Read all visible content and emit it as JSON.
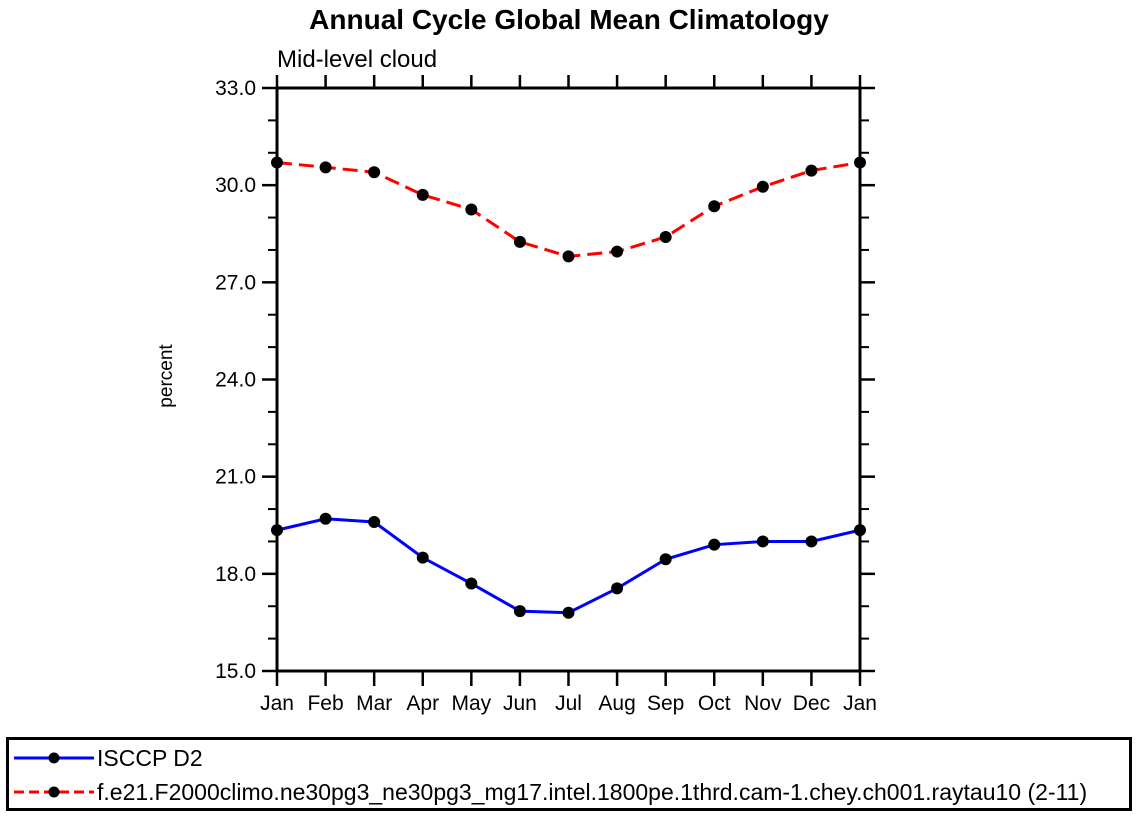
{
  "chart_data": {
    "type": "line",
    "title": "Annual Cycle Global Mean Climatology",
    "subtitle": "Mid-level cloud",
    "ylabel": "percent",
    "ylim": [
      15.0,
      33.0
    ],
    "yticks_major": [
      33.0,
      30.0,
      27.0,
      24.0,
      21.0,
      18.0,
      15.0
    ],
    "ytick_labels": [
      "33.0",
      "30.0",
      "27.0",
      "24.0",
      "21.0",
      "18.0",
      "15.0"
    ],
    "ytick_minor_step": 1.0,
    "x_categories": [
      "Jan",
      "Feb",
      "Mar",
      "Apr",
      "May",
      "Jun",
      "Jul",
      "Aug",
      "Sep",
      "Oct",
      "Nov",
      "Dec",
      "Jan"
    ],
    "grid": false,
    "legend_position": "bottom-box",
    "marker": "filled-circle",
    "marker_color": "#000000",
    "series": [
      {
        "name": "ISCCP D2",
        "line_color": "#0000ff",
        "line_style": "solid",
        "values": [
          19.35,
          19.7,
          19.6,
          18.5,
          17.7,
          16.85,
          16.8,
          17.55,
          18.45,
          18.9,
          19.0,
          19.0,
          19.35
        ]
      },
      {
        "name": "f.e21.F2000climo.ne30pg3_ne30pg3_mg17.intel.1800pe.1thrd.cam-1.chey.ch001.raytau10 (2-11)",
        "line_color": "#ff0000",
        "line_style": "dashed",
        "values": [
          30.7,
          30.55,
          30.4,
          29.7,
          29.25,
          28.25,
          27.8,
          27.95,
          28.4,
          29.35,
          29.95,
          30.45,
          30.7
        ]
      }
    ]
  }
}
